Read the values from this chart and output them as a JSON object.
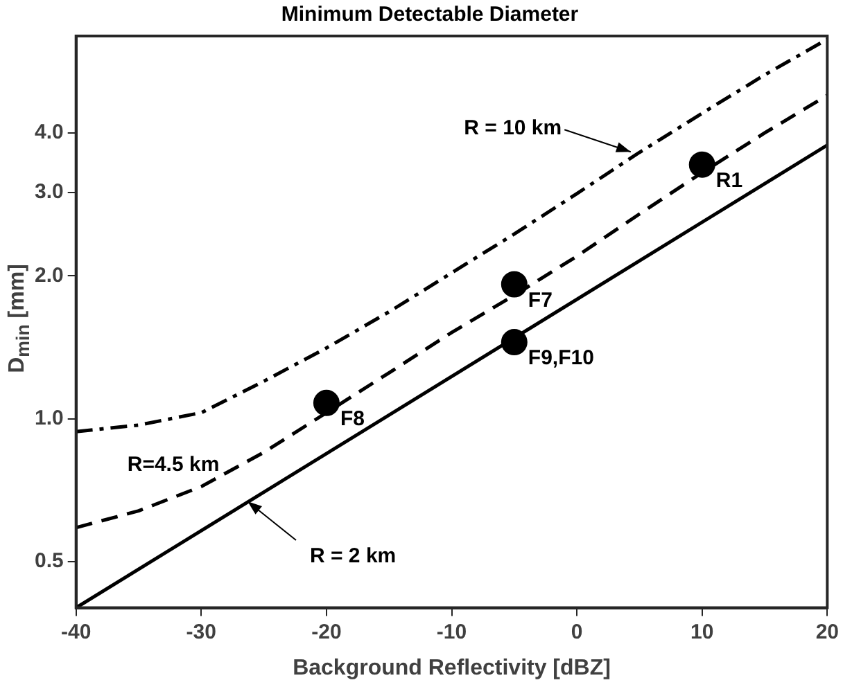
{
  "chart_data": {
    "type": "line",
    "title": "Minimum Detectable Diameter",
    "xlabel": "Background Reflectivity [dBZ]",
    "ylabel": "D$_{min}$ [mm]",
    "log": "y",
    "xlim": [
      -40,
      20
    ],
    "xticks": [
      -40,
      -30,
      -20,
      -10,
      0,
      10,
      20
    ],
    "ylim": [
      0.4,
      6.4
    ],
    "yticks": [
      {
        "value": 0.5,
        "label": "0.5"
      },
      {
        "value": 1,
        "label": "1.0"
      },
      {
        "value": 2,
        "label": "2.0"
      },
      {
        "value": 3,
        "label": "3.0"
      },
      {
        "value": 4,
        "label": "4.0"
      }
    ],
    "grid": false,
    "legend": false,
    "series": [
      {
        "color": "#000000",
        "line_style": "solid",
        "marker": "none",
        "x": [
          -40,
          20
        ],
        "values": [
          0.4,
          3.77
        ]
      },
      {
        "color": "#000000",
        "line_style": "dashed",
        "marker": "none",
        "x": [
          -40,
          -35,
          -30,
          -25,
          -20,
          -15,
          -10,
          -5,
          0,
          5,
          10,
          15,
          20
        ],
        "values": [
          0.59,
          0.64,
          0.72,
          0.85,
          1.03,
          1.25,
          1.52,
          1.82,
          2.2,
          2.7,
          3.3,
          4.0,
          4.8
        ]
      },
      {
        "color": "#000000",
        "line_style": "dashdot",
        "marker": "none",
        "x": [
          -40,
          -35,
          -30,
          -25,
          -20,
          -15,
          -10,
          -5,
          0,
          5,
          10,
          15,
          20
        ],
        "values": [
          0.94,
          0.97,
          1.03,
          1.2,
          1.41,
          1.68,
          2.03,
          2.45,
          2.98,
          3.64,
          4.4,
          5.3,
          6.3
        ]
      },
      {
        "type": "scatter",
        "color": "#000000",
        "marker": "circle",
        "x": [
          10,
          -5,
          -20,
          -5
        ],
        "values": [
          3.43,
          1.92,
          1.08,
          1.45
        ]
      }
    ],
    "annotations": [
      {
        "text": "R = 10 km",
        "x": 4.3,
        "y": 3.65
      },
      "R=4.5 km",
      {
        "text": "R = 2 km",
        "x": -26.3,
        "y": 0.67
      },
      {
        "text": "R1",
        "x": 10,
        "y": 3.43
      },
      {
        "text": "F7",
        "x": -5,
        "y": 1.92
      },
      {
        "text": "F8",
        "x": -20,
        "y": 1.08
      },
      {
        "text": "F9,F10",
        "x": -5,
        "y": 1.45
      }
    ]
  }
}
